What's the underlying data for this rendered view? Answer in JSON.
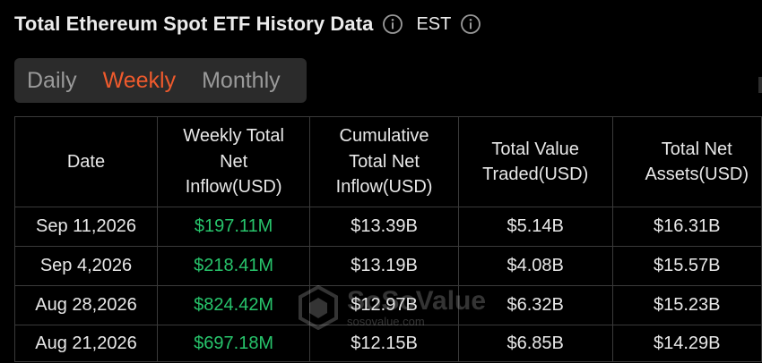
{
  "header": {
    "title": "Total Ethereum Spot ETF History Data",
    "timezone": "EST",
    "info_icon": "info-circle-icon"
  },
  "tabs": [
    {
      "label": "Daily",
      "active": false
    },
    {
      "label": "Weekly",
      "active": true
    },
    {
      "label": "Monthly",
      "active": false
    }
  ],
  "colors": {
    "accent_active_tab": "#ef5a2c",
    "positive_value": "#27c46b",
    "background": "#000000",
    "tab_bar": "#2b2b2b"
  },
  "table": {
    "columns": [
      "Date",
      "Weekly Total Net Inflow(USD)",
      "Cumulative Total Net Inflow(USD)",
      "Total Value Traded(USD)",
      "Total Net Assets(USD)"
    ],
    "rows": [
      [
        "Sep 11,2026",
        "$197.11M",
        "$13.39B",
        "$5.14B",
        "$16.31B"
      ],
      [
        "Sep 4,2026",
        "$218.41M",
        "$13.19B",
        "$4.08B",
        "$15.57B"
      ],
      [
        "Aug 28,2026",
        "$824.42M",
        "$12.97B",
        "$6.32B",
        "$15.23B"
      ],
      [
        "Aug 21,2026",
        "$697.18M",
        "$12.15B",
        "$6.85B",
        "$14.29B"
      ]
    ]
  },
  "watermark": {
    "name": "SoSoValue",
    "url": "sosovalue.com",
    "icon": "sosovalue-logo-icon"
  }
}
